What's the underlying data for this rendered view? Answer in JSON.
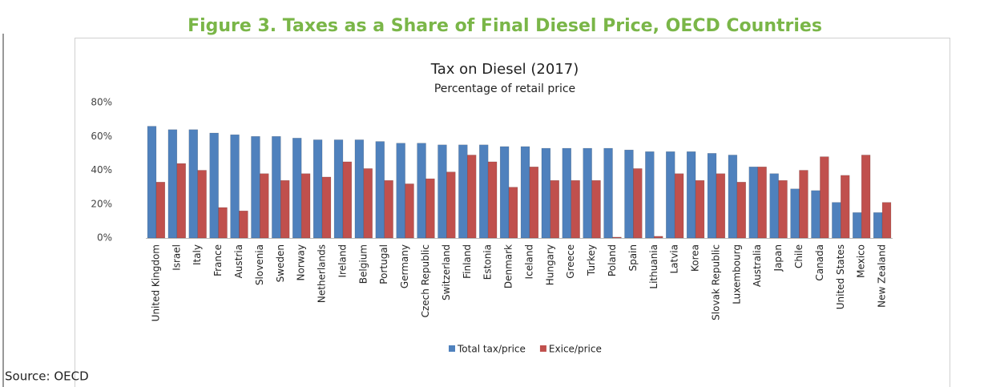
{
  "figure_title": "Figure 3. Taxes as a Share of Final Diesel Price, OECD Countries",
  "source": "Source: OECD",
  "chart_data": {
    "type": "bar",
    "title": "Tax on Diesel (2017)",
    "subtitle": "Percentage of retail price",
    "categories": [
      "United Kingdom",
      "Israel",
      "Italy",
      "France",
      "Austria",
      "Slovenia",
      "Sweden",
      "Norway",
      "Netherlands",
      "Ireland",
      "Belgium",
      "Portugal",
      "Germany",
      "Czech Republic",
      "Switzerland",
      "Finland",
      "Estonia",
      "Denmark",
      "Iceland",
      "Hungary",
      "Greece",
      "Turkey",
      "Poland",
      "Spain",
      "Lithuania",
      "Latvia",
      "Korea",
      "Slovak Republic",
      "Luxembourg",
      "Australia",
      "Japan",
      "Chile",
      "Canada",
      "United States",
      "Mexico",
      "New Zealand"
    ],
    "series": [
      {
        "name": "Total tax/price",
        "color": "#4f81bd",
        "values": [
          66,
          64,
          64,
          62,
          61,
          60,
          60,
          59,
          58,
          58,
          58,
          57,
          56,
          56,
          55,
          55,
          55,
          54,
          54,
          53,
          53,
          53,
          53,
          52,
          51,
          51,
          51,
          50,
          49,
          42,
          38,
          29,
          28,
          21,
          15,
          15
        ]
      },
      {
        "name": "Exice/price",
        "color": "#c0504d",
        "values": [
          33,
          44,
          40,
          18,
          16,
          38,
          34,
          38,
          36,
          45,
          41,
          34,
          32,
          35,
          39,
          49,
          45,
          30,
          42,
          34,
          34,
          34,
          0.5,
          41,
          1,
          38,
          34,
          38,
          33,
          42,
          34,
          40,
          48,
          37,
          49,
          21
        ]
      }
    ],
    "ylim": [
      0,
      80
    ],
    "yticks": [
      {
        "value": 0,
        "label": "0%"
      },
      {
        "value": 20,
        "label": "20%"
      },
      {
        "value": 40,
        "label": "40%"
      },
      {
        "value": 60,
        "label": "60%"
      },
      {
        "value": 80,
        "label": "80%"
      }
    ],
    "legend": "bottom"
  }
}
